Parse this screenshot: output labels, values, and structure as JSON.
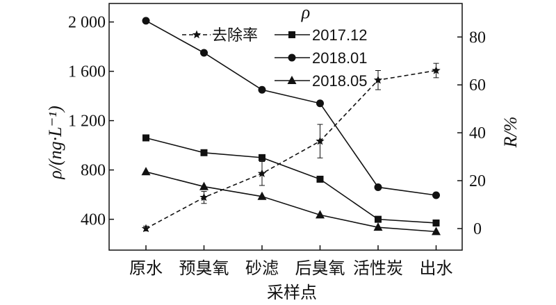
{
  "chart_data": {
    "type": "line",
    "categories": [
      "原水",
      "预臭氧",
      "砂滤",
      "后臭氧",
      "活性炭",
      "出水"
    ],
    "xlabel": "采样点",
    "ylabel_left": "ρ/(ng·L⁻¹)",
    "ylabel_right": "R/%",
    "legend_title": "ρ",
    "ylim_left": [
      150,
      2150
    ],
    "yticks_left": [
      400,
      800,
      1200,
      1600,
      2000
    ],
    "yticklabels_left": [
      "400",
      "800",
      "1 200",
      "1 600",
      "2 000"
    ],
    "ylim_right": [
      -9,
      94
    ],
    "yticks_right": [
      0,
      20,
      40,
      60,
      80
    ],
    "yticklabels_right": [
      "0",
      "20",
      "40",
      "60",
      "80"
    ],
    "legend_position": "top-left",
    "series": [
      {
        "name": "去除率",
        "axis": "right",
        "style": "dashed",
        "marker": "star",
        "values": [
          0,
          13,
          23,
          36.5,
          62,
          66
        ],
        "errors": [
          1,
          2.5,
          5,
          7,
          4,
          3
        ]
      },
      {
        "name": "2017.12",
        "axis": "left",
        "style": "solid",
        "marker": "square",
        "values": [
          1060,
          940,
          900,
          725,
          400,
          370
        ]
      },
      {
        "name": "2018.01",
        "axis": "left",
        "style": "solid",
        "marker": "circle",
        "values": [
          2010,
          1750,
          1450,
          1340,
          660,
          595
        ]
      },
      {
        "name": "2018.05",
        "axis": "left",
        "style": "solid",
        "marker": "triangle",
        "values": [
          785,
          665,
          585,
          435,
          335,
          300
        ]
      }
    ],
    "colors": {
      "line": "#111111"
    }
  }
}
